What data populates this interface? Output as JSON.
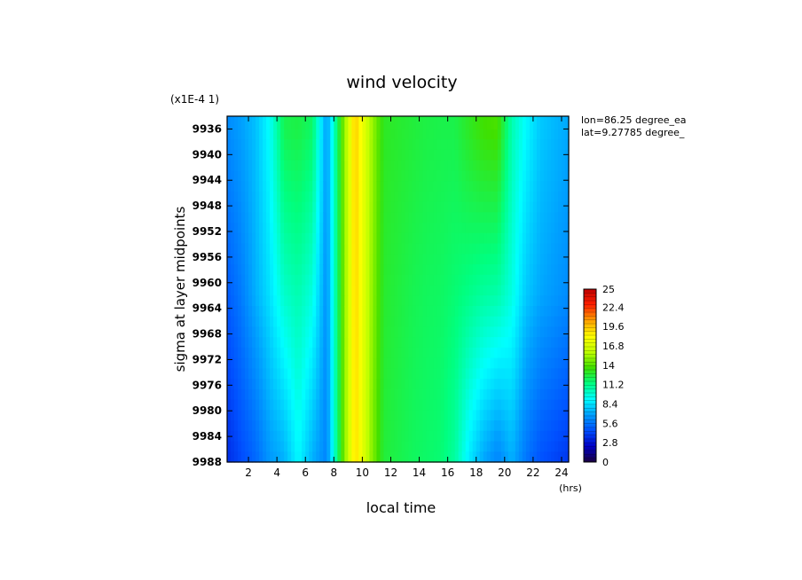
{
  "chart_data": {
    "type": "heatmap",
    "title": "wind velocity",
    "xlabel": "local time",
    "x_unit": "(hrs)",
    "ylabel": "sigma at layer midpoints",
    "y_scale_note": "(x1E-4 1)",
    "annotations": [
      "lon=86.25 degree_ea",
      "lat=9.27785 degree_"
    ],
    "x_ticks": [
      "2",
      "4",
      "6",
      "8",
      "10",
      "12",
      "14",
      "16",
      "18",
      "20",
      "22",
      "24"
    ],
    "y_ticks": [
      "9936",
      "9940",
      "9944",
      "9948",
      "9952",
      "9956",
      "9960",
      "9964",
      "9968",
      "9972",
      "9976",
      "9980",
      "9984",
      "9988"
    ],
    "xlim": [
      0.5,
      24.5
    ],
    "ylim": [
      9934,
      9988
    ],
    "colorbar_ticks": [
      "25",
      "22.4",
      "19.6",
      "16.8",
      "14",
      "11.2",
      "8.4",
      "5.6",
      "2.8",
      "0"
    ],
    "colorbar_range": [
      0,
      25
    ],
    "colormap": [
      "#1a0040",
      "#0000c8",
      "#0050ff",
      "#00a0ff",
      "#00ffff",
      "#00ff80",
      "#40e000",
      "#c0ff00",
      "#ffff00",
      "#ffa000",
      "#ff2000",
      "#c00000"
    ],
    "x": [
      0.5,
      1.5,
      2.5,
      3.5,
      4.5,
      5.5,
      6.5,
      7.5,
      8.5,
      9.5,
      10.5,
      11.5,
      12.5,
      13.5,
      14.5,
      15.5,
      16.5,
      17.5,
      18.5,
      19.5,
      20.5,
      21.5,
      22.5,
      23.5,
      24.5
    ],
    "y": [
      9936,
      9962,
      9988
    ],
    "values": [
      [
        6.2,
        6.8,
        7.6,
        9.2,
        12.2,
        12.4,
        11.8,
        6.6,
        13.5,
        19.5,
        15.8,
        13.0,
        12.8,
        12.6,
        12.4,
        12.3,
        12.3,
        13.0,
        13.6,
        13.8,
        10.5,
        9.0,
        7.8,
        7.4,
        7.0
      ],
      [
        4.8,
        5.8,
        7.2,
        8.4,
        10.0,
        10.5,
        9.6,
        6.3,
        13.4,
        19.3,
        15.6,
        12.8,
        12.5,
        12.2,
        12.0,
        11.9,
        11.6,
        11.2,
        10.8,
        10.6,
        9.6,
        7.8,
        7.0,
        6.6,
        6.2
      ],
      [
        3.5,
        4.4,
        5.2,
        6.6,
        7.2,
        9.0,
        7.2,
        6.0,
        13.3,
        19.1,
        15.4,
        12.6,
        12.3,
        12.0,
        11.8,
        11.6,
        10.8,
        8.6,
        7.0,
        6.0,
        7.2,
        5.6,
        4.6,
        4.2,
        3.8
      ]
    ]
  }
}
